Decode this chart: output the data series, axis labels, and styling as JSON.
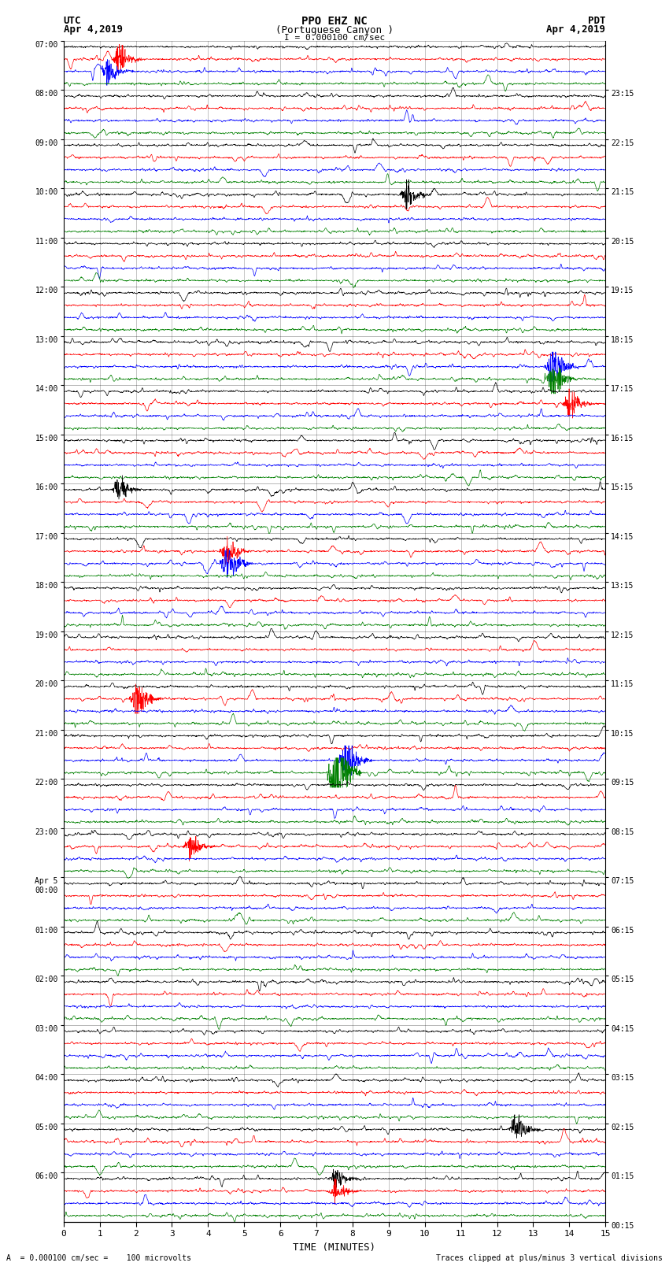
{
  "title_line1": "PPO EHZ NC",
  "title_line2": "(Portuguese Canyon )",
  "title_line3": "I = 0.000100 cm/sec",
  "left_top_label1": "UTC",
  "left_top_label2": "Apr 4,2019",
  "right_top_label1": "PDT",
  "right_top_label2": "Apr 4,2019",
  "xlabel": "TIME (MINUTES)",
  "bottom_left_note": "A  = 0.000100 cm/sec =    100 microvolts",
  "bottom_right_note": "Traces clipped at plus/minus 3 vertical divisions",
  "utc_times": [
    "07:00",
    "08:00",
    "09:00",
    "10:00",
    "11:00",
    "12:00",
    "13:00",
    "14:00",
    "15:00",
    "16:00",
    "17:00",
    "18:00",
    "19:00",
    "20:00",
    "21:00",
    "22:00",
    "23:00",
    "00:00",
    "01:00",
    "02:00",
    "03:00",
    "04:00",
    "05:00",
    "06:00"
  ],
  "utc_special": [
    17
  ],
  "pdt_times": [
    "00:15",
    "01:15",
    "02:15",
    "03:15",
    "04:15",
    "05:15",
    "06:15",
    "07:15",
    "08:15",
    "09:15",
    "10:15",
    "11:15",
    "12:15",
    "13:15",
    "14:15",
    "15:15",
    "16:15",
    "17:15",
    "18:15",
    "19:15",
    "20:15",
    "21:15",
    "22:15",
    "23:15"
  ],
  "n_hours": 24,
  "colors": [
    "black",
    "red",
    "blue",
    "green"
  ],
  "xlim": [
    0,
    15
  ],
  "bg_color": "white",
  "grid_color": "#777777"
}
